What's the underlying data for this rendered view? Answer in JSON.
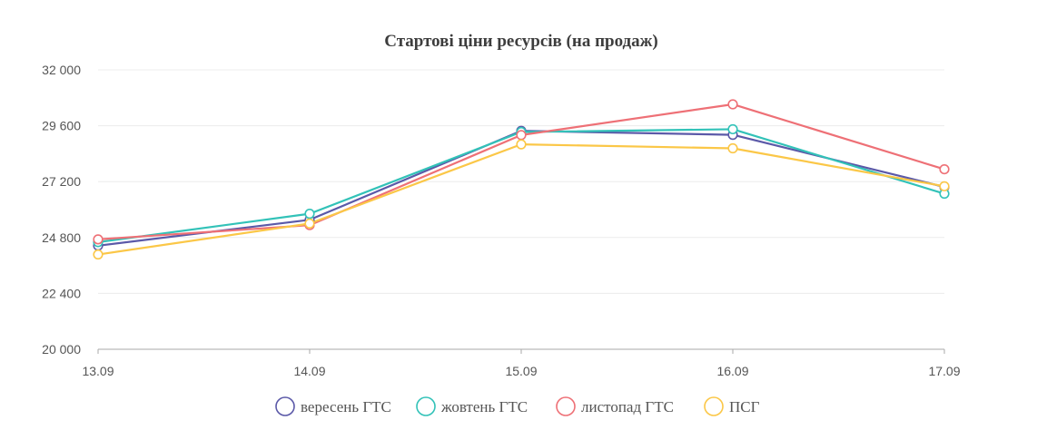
{
  "chart_data": {
    "type": "line",
    "title": "Стартові ціни ресурсів (на продаж)",
    "xlabel": "",
    "ylabel": "",
    "categories": [
      "13.09",
      "14.09",
      "15.09",
      "16.09",
      "17.09"
    ],
    "ylim": [
      20000,
      32000
    ],
    "yticks": [
      20000,
      22400,
      24800,
      27200,
      29600,
      32000
    ],
    "ytick_labels": [
      "20 000",
      "22 400",
      "24 800",
      "27 200",
      "29 600",
      "32 000"
    ],
    "grid": true,
    "legend_position": "bottom",
    "series": [
      {
        "name": "вересень ГТС",
        "color": "#5b59a8",
        "values": [
          24450,
          25560,
          29380,
          29210,
          26970
        ]
      },
      {
        "name": "жовтень ГТС",
        "color": "#32c2b8",
        "values": [
          24600,
          25820,
          29330,
          29450,
          26680
        ]
      },
      {
        "name": "листопад ГТС",
        "color": "#ee7076",
        "values": [
          24720,
          25330,
          29200,
          30520,
          27730
        ]
      },
      {
        "name": "ПСГ",
        "color": "#fbc747",
        "values": [
          24070,
          25400,
          28800,
          28630,
          27000
        ]
      }
    ]
  }
}
